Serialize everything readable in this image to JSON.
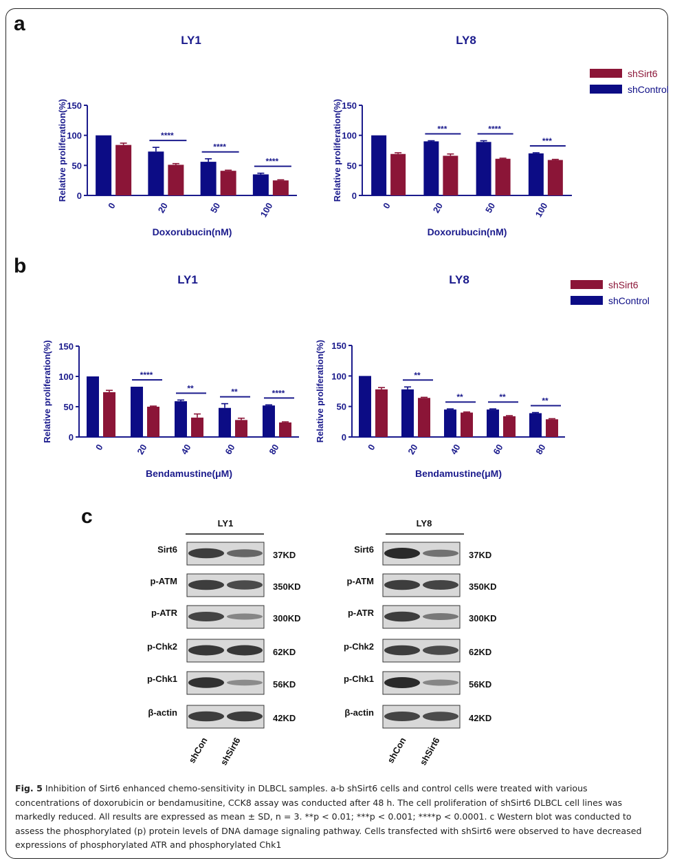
{
  "colors": {
    "shControl": "#0c0c85",
    "shSirt6": "#8b1537",
    "axis": "#1a1a8c",
    "blot_bg": "#d8d8d8",
    "band": "#2a2a2a"
  },
  "panels": {
    "a": "a",
    "b": "b",
    "c": "c"
  },
  "legend": {
    "shSirt6": "shSirt6",
    "shControl": "shControl"
  },
  "chart_data": [
    {
      "id": "a-ly1",
      "type": "bar",
      "title": "LY1",
      "xlabel": "Doxorubucin(nM)",
      "ylabel": "Relative proliferation(%)",
      "ylim": [
        0,
        150
      ],
      "yticks": [
        "0",
        "50",
        "100",
        "150"
      ],
      "categories": [
        "0",
        "20",
        "50",
        "100"
      ],
      "series": [
        {
          "name": "shControl",
          "values": [
            100,
            73,
            56,
            35
          ],
          "errors": [
            0,
            7,
            5,
            2
          ]
        },
        {
          "name": "shSirt6",
          "values": [
            84,
            51,
            41,
            25
          ],
          "errors": [
            3,
            2,
            1,
            1
          ]
        }
      ],
      "significance": [
        "",
        "****",
        "****",
        "****"
      ]
    },
    {
      "id": "a-ly8",
      "type": "bar",
      "title": "LY8",
      "xlabel": "Doxorubucin(nM)",
      "ylabel": "Relative proliferation(%)",
      "ylim": [
        0,
        150
      ],
      "yticks": [
        "0",
        "50",
        "100",
        "150"
      ],
      "categories": [
        "0",
        "20",
        "50",
        "100"
      ],
      "series": [
        {
          "name": "shControl",
          "values": [
            100,
            90,
            89,
            70
          ],
          "errors": [
            0,
            1,
            2,
            1
          ]
        },
        {
          "name": "shSirt6",
          "values": [
            69,
            66,
            61,
            59
          ],
          "errors": [
            2,
            3,
            1,
            1
          ]
        }
      ],
      "significance": [
        "",
        "***",
        "****",
        "***"
      ]
    },
    {
      "id": "b-ly1",
      "type": "bar",
      "title": "LY1",
      "xlabel": "Bendamustine(μM)",
      "ylabel": "Relative proliferation(%)",
      "ylim": [
        0,
        150
      ],
      "yticks": [
        "0",
        "50",
        "100",
        "150"
      ],
      "categories": [
        "0",
        "20",
        "40",
        "60",
        "80"
      ],
      "series": [
        {
          "name": "shControl",
          "values": [
            100,
            83,
            59,
            48,
            52
          ],
          "errors": [
            0,
            0,
            2,
            7,
            1
          ]
        },
        {
          "name": "shSirt6",
          "values": [
            74,
            50,
            32,
            28,
            24
          ],
          "errors": [
            3,
            1,
            6,
            3,
            1
          ]
        }
      ],
      "significance": [
        "",
        "****",
        "**",
        "**",
        "****"
      ]
    },
    {
      "id": "b-ly8",
      "type": "bar",
      "title": "LY8",
      "xlabel": "Bendamustine(μM)",
      "ylabel": "Relative proliferation(%)",
      "ylim": [
        0,
        150
      ],
      "yticks": [
        "0",
        "50",
        "100",
        "150"
      ],
      "categories": [
        "0",
        "20",
        "40",
        "60",
        "80"
      ],
      "series": [
        {
          "name": "shControl",
          "values": [
            100,
            78,
            45,
            45,
            39
          ],
          "errors": [
            0,
            4,
            1,
            1,
            1
          ]
        },
        {
          "name": "shSirt6",
          "values": [
            78,
            64,
            40,
            34,
            29
          ],
          "errors": [
            3,
            1,
            1,
            1,
            1
          ]
        }
      ],
      "significance": [
        "",
        "**",
        "**",
        "**",
        "**"
      ]
    }
  ],
  "western": {
    "blots": [
      {
        "title": "LY1",
        "rows": [
          {
            "label": "Sirt6",
            "size": "37KD",
            "band1": 0.85,
            "band2": 0.55
          },
          {
            "label": "p-ATM",
            "size": "350KD",
            "band1": 0.85,
            "band2": 0.75
          },
          {
            "label": "p-ATR",
            "size": "300KD",
            "band1": 0.8,
            "band2": 0.3
          },
          {
            "label": "p-Chk2",
            "size": "62KD",
            "band1": 0.9,
            "band2": 0.9
          },
          {
            "label": "p-Chk1",
            "size": "56KD",
            "band1": 0.95,
            "band2": 0.25
          },
          {
            "label": "β-actin",
            "size": "42KD",
            "band1": 0.85,
            "band2": 0.85
          }
        ]
      },
      {
        "title": "LY8",
        "rows": [
          {
            "label": "Sirt6",
            "size": "37KD",
            "band1": 1.0,
            "band2": 0.45
          },
          {
            "label": "p-ATM",
            "size": "350KD",
            "band1": 0.85,
            "band2": 0.8
          },
          {
            "label": "p-ATR",
            "size": "300KD",
            "band1": 0.85,
            "band2": 0.4
          },
          {
            "label": "p-Chk2",
            "size": "62KD",
            "band1": 0.85,
            "band2": 0.75
          },
          {
            "label": "p-Chk1",
            "size": "56KD",
            "band1": 1.0,
            "band2": 0.3
          },
          {
            "label": "β-actin",
            "size": "42KD",
            "band1": 0.8,
            "band2": 0.75
          }
        ]
      }
    ],
    "lanes": [
      "shCon",
      "shSirt6"
    ]
  },
  "caption": {
    "fig_label": "Fig. 5",
    "text": "Inhibition of Sirt6 enhanced chemo-sensitivity in DLBCL samples. a-b shSirt6 cells and control cells were treated with various concentrations of doxorubicin or bendamusitine, CCK8 assay was conducted after 48 h. The cell proliferation of shSirt6 DLBCL cell lines was markedly reduced. All results are expressed as mean ± SD, n = 3. **p < 0.01; ***p < 0.001; ****p < 0.0001. c Western blot was conducted to assess the phosphorylated (p) protein levels of DNA damage signaling pathway. Cells transfected with shSirt6 were observed to have decreased expressions of phosphorylated ATR and phosphorylated Chk1"
  }
}
